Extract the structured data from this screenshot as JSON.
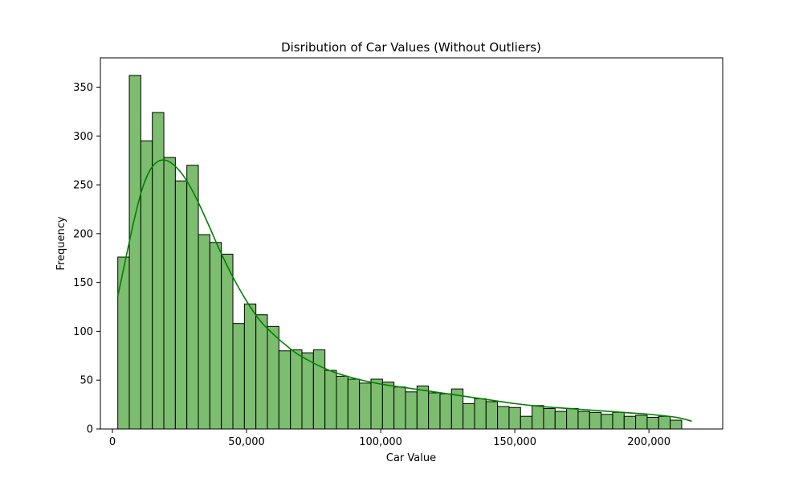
{
  "chart_data": {
    "type": "bar",
    "title": "Disribution of Car Values (Without Outliers)",
    "xlabel": "Car Value",
    "ylabel": "Frequency",
    "xlim": [
      -4500,
      227500
    ],
    "ylim": [
      0,
      380
    ],
    "x_ticks": [
      0,
      50000,
      100000,
      150000,
      200000
    ],
    "x_tick_labels": [
      "0",
      "50,000",
      "100,000",
      "150,000",
      "200,000"
    ],
    "y_ticks": [
      0,
      50,
      100,
      150,
      200,
      250,
      300,
      350
    ],
    "y_tick_labels": [
      "0",
      "50",
      "100",
      "150",
      "200",
      "250",
      "300",
      "350"
    ],
    "bin_start": 2000,
    "bin_width": 4290,
    "values": [
      176,
      362,
      295,
      324,
      278,
      254,
      270,
      199,
      191,
      179,
      108,
      128,
      117,
      105,
      80,
      81,
      78,
      81,
      60,
      54,
      51,
      47,
      51,
      48,
      43,
      38,
      44,
      37,
      36,
      41,
      26,
      31,
      28,
      23,
      22,
      13,
      24,
      21,
      18,
      21,
      18,
      17,
      15,
      17,
      13,
      14,
      12,
      13,
      9
    ],
    "kde": {
      "x": [
        2000,
        5000,
        8000,
        11000,
        14000,
        17000,
        20000,
        23000,
        26000,
        29000,
        32000,
        36000,
        40000,
        45000,
        50000,
        55000,
        60000,
        65000,
        70000,
        80000,
        90000,
        100000,
        110000,
        120000,
        130000,
        140000,
        150000,
        160000,
        170000,
        180000,
        190000,
        200000,
        210000,
        216000
      ],
      "y": [
        136,
        175,
        213,
        245,
        265,
        274,
        275,
        270,
        261,
        248,
        232,
        208,
        183,
        155,
        131,
        111,
        97,
        85,
        75,
        61,
        52,
        46,
        42,
        38,
        34,
        30,
        26,
        23,
        21,
        19,
        17,
        15,
        12,
        8
      ]
    },
    "grid": false,
    "bar_color": "#7cbd6f",
    "bar_edge_color": "#000000",
    "kde_color": "#008000"
  }
}
